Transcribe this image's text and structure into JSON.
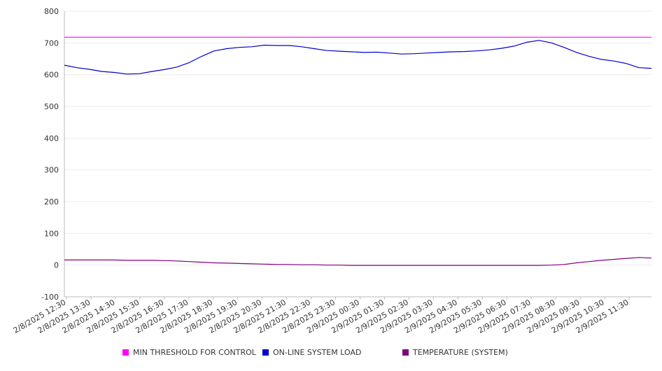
{
  "chart_data": {
    "type": "line",
    "title": "",
    "xlabel": "",
    "ylabel": "",
    "ylim": [
      -100,
      800
    ],
    "yticks": [
      800,
      700,
      600,
      500,
      400,
      300,
      200,
      100,
      0,
      -100
    ],
    "grid": true,
    "legend_position": "bottom",
    "x_tick_labels": [
      "2/8/2025 12:30",
      "2/8/2025 13:30",
      "2/8/2025 14:30",
      "2/8/2025 15:30",
      "2/8/2025 16:30",
      "2/8/2025 17:30",
      "2/8/2025 18:30",
      "2/8/2025 19:30",
      "2/8/2025 20:30",
      "2/8/2025 21:30",
      "2/8/2025 22:30",
      "2/8/2025 23:30",
      "2/9/2025 00:30",
      "2/9/2025 01:30",
      "2/9/2025 02:30",
      "2/9/2025 03:30",
      "2/9/2025 04:30",
      "2/9/2025 05:30",
      "2/9/2025 06:30",
      "2/9/2025 07:30",
      "2/9/2025 08:30",
      "2/9/2025 09:30",
      "2/9/2025 10:30",
      "2/9/2025 11:30"
    ],
    "x": [
      "2/8/2025 12:30",
      "2/8/2025 13:00",
      "2/8/2025 13:30",
      "2/8/2025 14:00",
      "2/8/2025 14:30",
      "2/8/2025 15:00",
      "2/8/2025 15:30",
      "2/8/2025 16:00",
      "2/8/2025 16:30",
      "2/8/2025 17:00",
      "2/8/2025 17:30",
      "2/8/2025 18:00",
      "2/8/2025 18:30",
      "2/8/2025 19:00",
      "2/8/2025 19:30",
      "2/8/2025 20:00",
      "2/8/2025 20:30",
      "2/8/2025 21:00",
      "2/8/2025 21:30",
      "2/8/2025 22:00",
      "2/8/2025 22:30",
      "2/8/2025 23:00",
      "2/8/2025 23:30",
      "2/9/2025 00:00",
      "2/9/2025 00:30",
      "2/9/2025 01:00",
      "2/9/2025 01:30",
      "2/9/2025 02:00",
      "2/9/2025 02:30",
      "2/9/2025 03:00",
      "2/9/2025 03:30",
      "2/9/2025 04:00",
      "2/9/2025 04:30",
      "2/9/2025 05:00",
      "2/9/2025 05:30",
      "2/9/2025 06:00",
      "2/9/2025 06:30",
      "2/9/2025 07:00",
      "2/9/2025 07:30",
      "2/9/2025 08:00",
      "2/9/2025 08:30",
      "2/9/2025 09:00",
      "2/9/2025 09:30",
      "2/9/2025 10:00",
      "2/9/2025 10:30",
      "2/9/2025 11:00",
      "2/9/2025 11:30",
      "2/9/2025 12:00"
    ],
    "series": [
      {
        "name": "MIN THRESHOLD FOR CONTROL",
        "color": "#ff00ff",
        "values": [
          718,
          718,
          718,
          718,
          718,
          718,
          718,
          718,
          718,
          718,
          718,
          718,
          718,
          718,
          718,
          718,
          718,
          718,
          718,
          718,
          718,
          718,
          718,
          718,
          718,
          718,
          718,
          718,
          718,
          718,
          718,
          718,
          718,
          718,
          718,
          718,
          718,
          718,
          718,
          718,
          718,
          718,
          718,
          718,
          718,
          718,
          718,
          718
        ]
      },
      {
        "name": "ON-LINE SYSTEM LOAD",
        "color": "#0000cc",
        "values": [
          630,
          622,
          617,
          610,
          607,
          602,
          603,
          610,
          616,
          624,
          638,
          658,
          675,
          682,
          686,
          688,
          693,
          692,
          692,
          688,
          682,
          676,
          674,
          672,
          670,
          671,
          668,
          665,
          666,
          668,
          670,
          672,
          673,
          675,
          678,
          683,
          690,
          702,
          708,
          700,
          686,
          670,
          658,
          648,
          643,
          635,
          622,
          620
        ]
      },
      {
        "name": "TEMPERATURE (SYSTEM)",
        "color": "#800080",
        "values": [
          16,
          16,
          16,
          16,
          16,
          15,
          15,
          15,
          14,
          13,
          11,
          9,
          7,
          6,
          5,
          4,
          3,
          2,
          2,
          1,
          1,
          0,
          0,
          -1,
          -1,
          -1,
          -1,
          -1,
          -1,
          -1,
          -1,
          -1,
          -1,
          -1,
          -1,
          -1,
          -1,
          -1,
          -1,
          0,
          2,
          7,
          11,
          15,
          18,
          21,
          24,
          22
        ]
      }
    ]
  }
}
